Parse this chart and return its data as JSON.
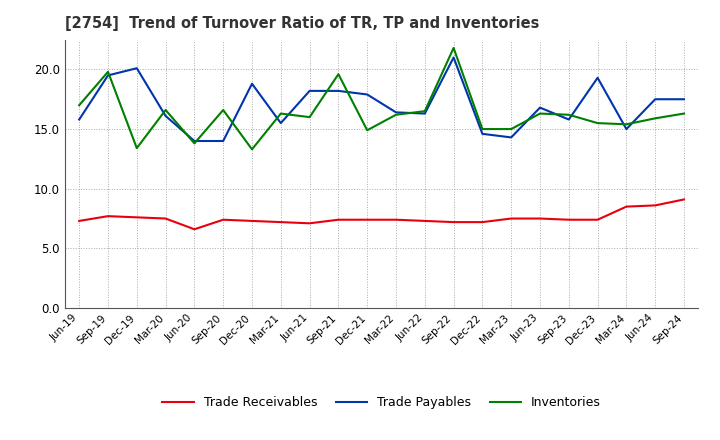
{
  "title": "[2754]  Trend of Turnover Ratio of TR, TP and Inventories",
  "x_labels": [
    "Jun-19",
    "Sep-19",
    "Dec-19",
    "Mar-20",
    "Jun-20",
    "Sep-20",
    "Dec-20",
    "Mar-21",
    "Jun-21",
    "Sep-21",
    "Dec-21",
    "Mar-22",
    "Jun-22",
    "Sep-22",
    "Dec-22",
    "Mar-23",
    "Jun-23",
    "Sep-23",
    "Dec-23",
    "Mar-24",
    "Jun-24",
    "Sep-24"
  ],
  "trade_receivables": [
    7.3,
    7.7,
    7.6,
    7.5,
    6.6,
    7.4,
    7.3,
    7.2,
    7.1,
    7.4,
    7.4,
    7.4,
    7.3,
    7.2,
    7.2,
    7.5,
    7.5,
    7.4,
    7.4,
    8.5,
    8.6,
    9.1
  ],
  "trade_payables": [
    15.8,
    19.5,
    20.1,
    16.1,
    14.0,
    14.0,
    18.8,
    15.5,
    18.2,
    18.2,
    17.9,
    16.4,
    16.3,
    21.0,
    14.6,
    14.3,
    16.8,
    15.8,
    19.3,
    15.0,
    17.5,
    17.5
  ],
  "inventories": [
    17.0,
    19.8,
    13.4,
    16.6,
    13.8,
    16.6,
    13.3,
    16.3,
    16.0,
    19.6,
    14.9,
    16.2,
    16.5,
    21.8,
    15.0,
    15.0,
    16.3,
    16.2,
    15.5,
    15.4,
    15.9,
    16.3
  ],
  "ylim": [
    0,
    22.5
  ],
  "yticks": [
    0.0,
    5.0,
    10.0,
    15.0,
    20.0
  ],
  "color_tr": "#e8000e",
  "color_tp": "#0035ad",
  "color_inv": "#008000",
  "legend_tr": "Trade Receivables",
  "legend_tp": "Trade Payables",
  "legend_inv": "Inventories",
  "bg_color": "#ffffff",
  "grid_color": "#aaaaaa"
}
